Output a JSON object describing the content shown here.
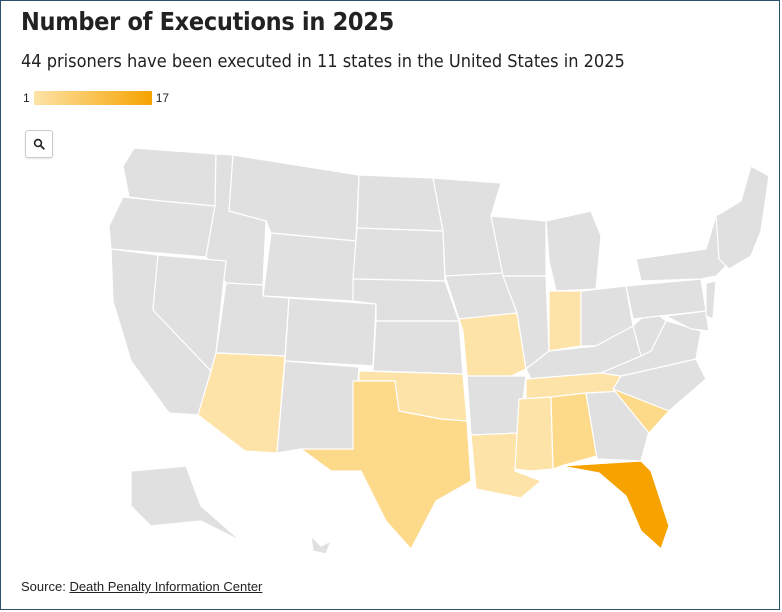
{
  "title": "Number of Executions in 2025",
  "subtitle": "44 prisoners have been executed in 11 states in the United States in 2025",
  "legend": {
    "min_label": "1",
    "max_label": "17",
    "min_value": 1,
    "max_value": 17,
    "min_color": "#fde3a7",
    "max_color": "#f6a300"
  },
  "colors": {
    "no_data": "#e0e0e0",
    "border": "#ffffff",
    "low": "#fde3a7",
    "mid": "#fdd98a",
    "high": "#f6a300"
  },
  "zoom_icon": "magnifier-icon",
  "source": {
    "prefix": "Source:",
    "link_text": "Death Penalty Information Center"
  },
  "chart_data": {
    "type": "choropleth",
    "states_with_executions": [
      {
        "state": "Florida",
        "level": "high"
      },
      {
        "state": "Texas",
        "level": "mid"
      },
      {
        "state": "South Carolina",
        "level": "mid"
      },
      {
        "state": "Alabama",
        "level": "mid"
      },
      {
        "state": "Oklahoma",
        "level": "low"
      },
      {
        "state": "Arizona",
        "level": "low"
      },
      {
        "state": "Louisiana",
        "level": "low"
      },
      {
        "state": "Mississippi",
        "level": "low"
      },
      {
        "state": "Tennessee",
        "level": "low"
      },
      {
        "state": "Indiana",
        "level": "low"
      },
      {
        "state": "Missouri",
        "level": "low"
      }
    ]
  }
}
